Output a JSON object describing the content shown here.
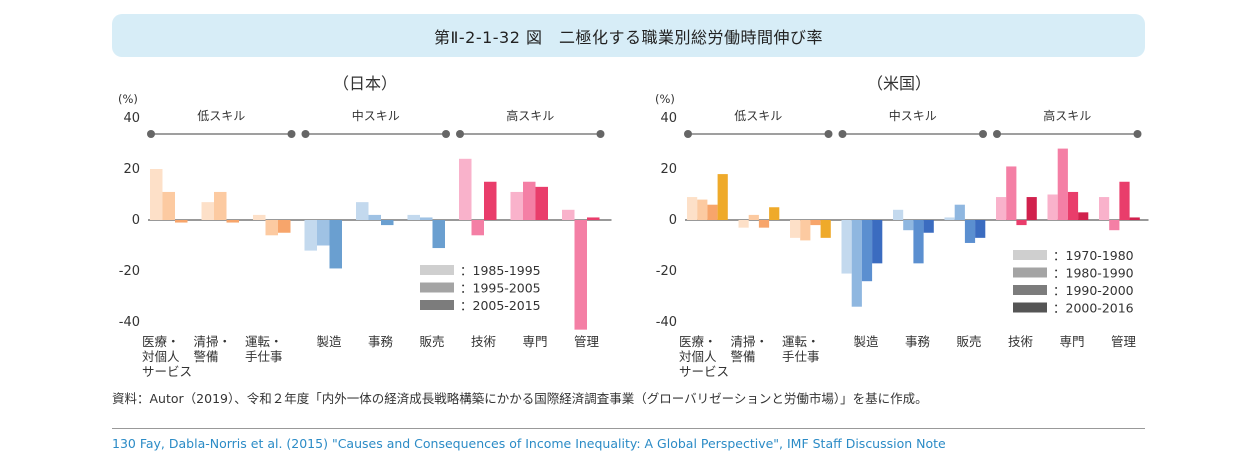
{
  "header": {
    "title": "第Ⅱ-2-1-32 図　二極化する職業別総労働時間伸び率"
  },
  "source": "資料：Autor（2019）、令和２年度「内外一体の経済成長戦略構築にかかる国際経済調査事業（グローバリゼーションと労働市場）」を基に作成。",
  "footnote": "130 Fay, Dabla-Norris et al. (2015) \"Causes and Consequences of Income Inequality: A Global Perspective\", IMF Staff Discussion Note",
  "chart_data": [
    {
      "type": "bar",
      "title": "（日本）",
      "ylabel": "(%)",
      "ylim": [
        -40,
        40
      ],
      "yticks": [
        "40",
        "20",
        "0",
        "-20",
        "-40"
      ],
      "groups": [
        {
          "label": "低スキル",
          "categories": [
            0,
            2
          ]
        },
        {
          "label": "中スキル",
          "categories": [
            3,
            5
          ]
        },
        {
          "label": "高スキル",
          "categories": [
            6,
            8
          ]
        }
      ],
      "categories": [
        [
          "医療・",
          "対個人",
          "サービス"
        ],
        [
          "清掃・",
          "警備"
        ],
        [
          "運転・",
          "手仕事"
        ],
        [
          "製造"
        ],
        [
          "事務"
        ],
        [
          "販売"
        ],
        [
          "技術"
        ],
        [
          "専門"
        ],
        [
          "管理"
        ]
      ],
      "series": [
        {
          "name": "：1985-1995",
          "values": [
            20,
            7,
            2,
            -12,
            7,
            2,
            24,
            11,
            4
          ]
        },
        {
          "name": "：1995-2005",
          "values": [
            11,
            11,
            -6,
            -10,
            2,
            1,
            -6,
            15,
            -43
          ]
        },
        {
          "name": "：2005-2015",
          "values": [
            -1,
            -1,
            -5,
            -19,
            -2,
            -11,
            15,
            13,
            1
          ]
        }
      ],
      "legend_swatches": [
        "#cfcfcf",
        "#a4a4a4",
        "#7c7c7c"
      ],
      "palettes": [
        [
          "#fde0c8",
          "#fccaa1",
          "#f7a56b"
        ],
        [
          "#fde0c8",
          "#fccaa1",
          "#f7a56b"
        ],
        [
          "#fde0c8",
          "#fccaa1",
          "#f7a56b"
        ],
        [
          "#c3d9ee",
          "#9fc2e4",
          "#6a9fd0"
        ],
        [
          "#c3d9ee",
          "#9fc2e4",
          "#6a9fd0"
        ],
        [
          "#c3d9ee",
          "#9fc2e4",
          "#6a9fd0"
        ],
        [
          "#f9b2cb",
          "#f47fa5",
          "#e93d6b"
        ],
        [
          "#f9b2cb",
          "#f47fa5",
          "#e93d6b"
        ],
        [
          "#f9b2cb",
          "#f47fa5",
          "#e93d6b"
        ]
      ]
    },
    {
      "type": "bar",
      "title": "（米国）",
      "ylabel": "(%)",
      "ylim": [
        -40,
        40
      ],
      "yticks": [
        "40",
        "20",
        "0",
        "-20",
        "-40"
      ],
      "groups": [
        {
          "label": "低スキル",
          "categories": [
            0,
            2
          ]
        },
        {
          "label": "中スキル",
          "categories": [
            3,
            5
          ]
        },
        {
          "label": "高スキル",
          "categories": [
            6,
            8
          ]
        }
      ],
      "categories": [
        [
          "医療・",
          "対個人",
          "サービス"
        ],
        [
          "清掃・",
          "警備"
        ],
        [
          "運転・",
          "手仕事"
        ],
        [
          "製造"
        ],
        [
          "事務"
        ],
        [
          "販売"
        ],
        [
          "技術"
        ],
        [
          "専門"
        ],
        [
          "管理"
        ]
      ],
      "series": [
        {
          "name": "：1970-1980",
          "values": [
            9,
            -3,
            -7,
            -21,
            4,
            1,
            9,
            10,
            9
          ]
        },
        {
          "name": "：1980-1990",
          "values": [
            8,
            2,
            -8,
            -34,
            -4,
            6,
            21,
            28,
            -4
          ]
        },
        {
          "name": "：1990-2000",
          "values": [
            6,
            -3,
            -2,
            -24,
            -17,
            -9,
            -2,
            11,
            15
          ]
        },
        {
          "name": "：2000-2016",
          "values": [
            18,
            5,
            -7,
            -17,
            -5,
            -7,
            9,
            3,
            1
          ]
        }
      ],
      "legend_swatches": [
        "#cfcfcf",
        "#a4a4a4",
        "#7c7c7c",
        "#555555"
      ],
      "palettes": [
        [
          "#fde0c8",
          "#fccaa1",
          "#f7a56b",
          "#efaa2a"
        ],
        [
          "#fde0c8",
          "#fccaa1",
          "#f7a56b",
          "#efaa2a"
        ],
        [
          "#fde0c8",
          "#fccaa1",
          "#f7a56b",
          "#efaa2a"
        ],
        [
          "#c3d9ee",
          "#8fb7e0",
          "#5b8fd0",
          "#3b6cc0"
        ],
        [
          "#c3d9ee",
          "#8fb7e0",
          "#5b8fd0",
          "#3b6cc0"
        ],
        [
          "#c3d9ee",
          "#8fb7e0",
          "#5b8fd0",
          "#3b6cc0"
        ],
        [
          "#f9b2cb",
          "#f47fa5",
          "#e93d6b",
          "#d1214d"
        ],
        [
          "#f9b2cb",
          "#f47fa5",
          "#e93d6b",
          "#d1214d"
        ],
        [
          "#f9b2cb",
          "#f47fa5",
          "#e93d6b",
          "#d1214d"
        ]
      ]
    }
  ]
}
